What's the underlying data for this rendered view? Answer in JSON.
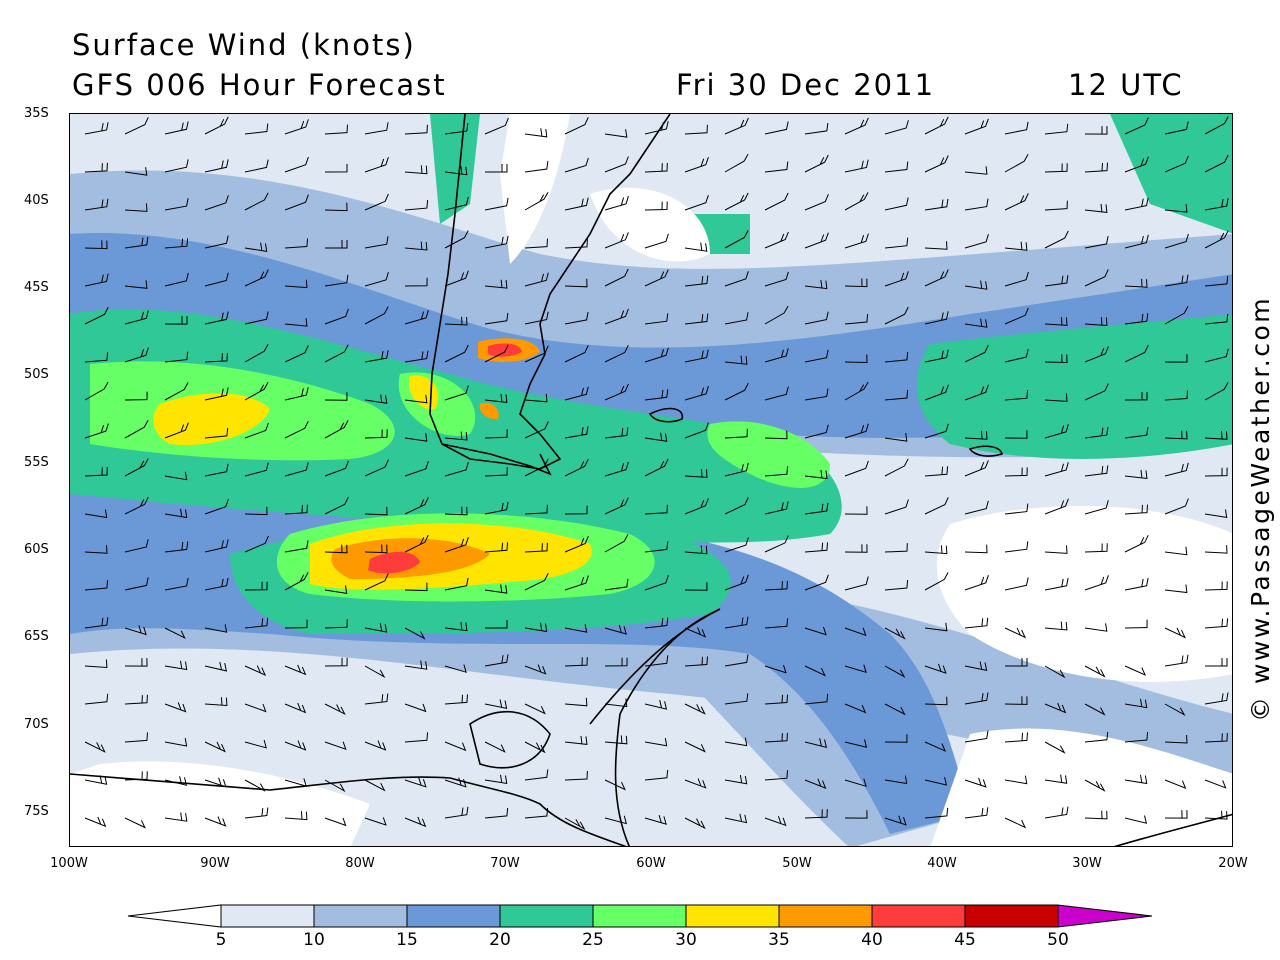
{
  "header": {
    "title": "Surface Wind (knots)",
    "subtitle": "GFS 006 Hour Forecast",
    "date": "Fri 30 Dec 2011",
    "time": "12 UTC"
  },
  "axes": {
    "latitude_labels": [
      "35S",
      "40S",
      "45S",
      "50S",
      "55S",
      "60S",
      "65S",
      "70S",
      "75S"
    ],
    "longitude_labels": [
      "100W",
      "90W",
      "80W",
      "70W",
      "60W",
      "50W",
      "40W",
      "30W",
      "20W"
    ]
  },
  "credit": "© www.PassageWeather.com",
  "colorbar": {
    "labels": [
      "5",
      "10",
      "15",
      "20",
      "25",
      "30",
      "35",
      "40",
      "45",
      "50"
    ],
    "colors": [
      "#ffffff",
      "#dfe8f3",
      "#a3bde0",
      "#6b98d6",
      "#2fc896",
      "#66ff66",
      "#ffe400",
      "#ff9900",
      "#ff3c3c",
      "#c80000",
      "#cc00cc"
    ]
  }
}
